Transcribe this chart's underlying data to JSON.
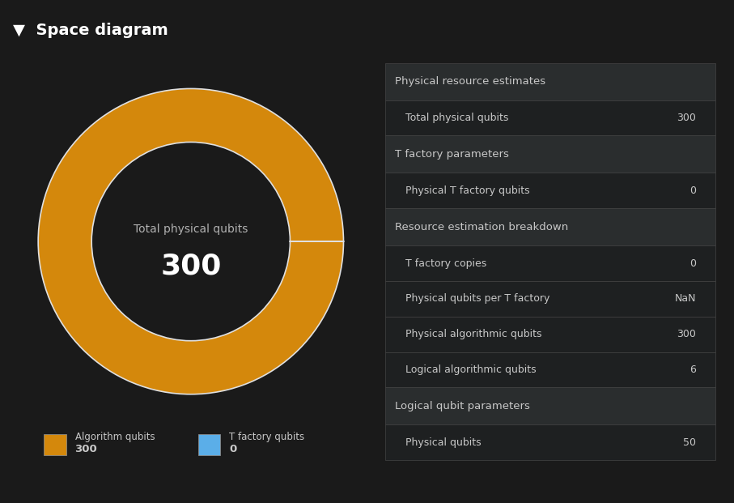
{
  "title": "Space diagram",
  "title_arrow": "▼",
  "bg_color": "#1a1a1a",
  "title_color": "#ffffff",
  "donut_colors": [
    "#d4880c",
    "#5baee8"
  ],
  "donut_values": [
    300,
    0.001
  ],
  "donut_center_label": "Total physical qubits",
  "donut_center_value": "300",
  "legend": [
    {
      "label": "Algorithm qubits",
      "value": "300",
      "color": "#d4880c"
    },
    {
      "label": "T factory qubits",
      "value": "0",
      "color": "#5baee8"
    }
  ],
  "table_bg_color": "#222222",
  "table_header_bg": "#2a2d2e",
  "table_row_bg": "#1e2021",
  "table_text_color": "#c8c8c8",
  "table_border_color": "#444444",
  "sections": [
    {
      "header": "Physical resource estimates",
      "rows": [
        {
          "label": "Total physical qubits",
          "value": "300"
        }
      ]
    },
    {
      "header": "T factory parameters",
      "rows": [
        {
          "label": "Physical T factory qubits",
          "value": "0"
        }
      ]
    },
    {
      "header": "Resource estimation breakdown",
      "rows": [
        {
          "label": "T factory copies",
          "value": "0"
        },
        {
          "label": "Physical qubits per T factory",
          "value": "NaN"
        },
        {
          "label": "Physical algorithmic qubits",
          "value": "300"
        },
        {
          "label": "Logical algorithmic qubits",
          "value": "6"
        }
      ]
    },
    {
      "header": "Logical qubit parameters",
      "rows": [
        {
          "label": "Physical qubits",
          "value": "50"
        }
      ]
    }
  ]
}
